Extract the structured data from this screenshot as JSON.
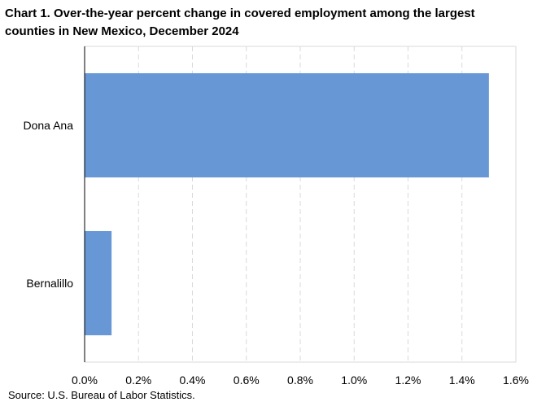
{
  "chart_data": {
    "type": "bar",
    "orientation": "horizontal",
    "title": "Chart 1. Over-the-year percent change in covered employment among the largest counties in New Mexico, December 2024",
    "categories": [
      "Dona Ana",
      "Bernalillo"
    ],
    "values": [
      1.5,
      0.1
    ],
    "value_unit": "%",
    "xlim": [
      0.0,
      1.6
    ],
    "x_ticks": [
      "0.0%",
      "0.2%",
      "0.4%",
      "0.6%",
      "0.8%",
      "1.0%",
      "1.2%",
      "1.4%",
      "1.6%"
    ],
    "grid": "vertical dashed",
    "legend": "none",
    "bar_color": "#6897d6",
    "source": "Source: U.S. Bureau of Labor Statistics."
  }
}
